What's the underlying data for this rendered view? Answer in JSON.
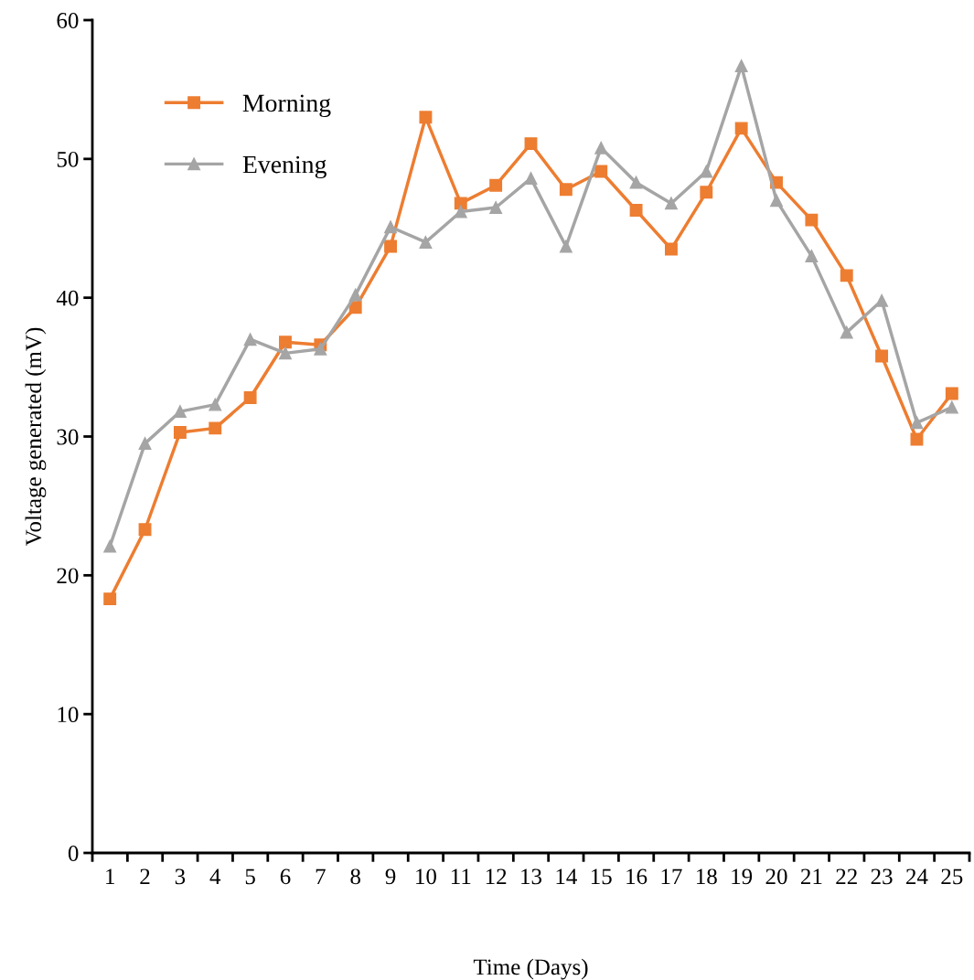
{
  "chart_data": {
    "type": "line",
    "xlabel": "Time (Days)",
    "ylabel": "Voltage generated (mV)",
    "categories": [
      "1",
      "2",
      "3",
      "4",
      "5",
      "6",
      "7",
      "8",
      "9",
      "10",
      "11",
      "12",
      "13",
      "14",
      "15",
      "16",
      "17",
      "18",
      "19",
      "20",
      "21",
      "22",
      "23",
      "24",
      "25"
    ],
    "series": [
      {
        "name": "Morning",
        "color": "#ed7d31",
        "marker": "square",
        "values": [
          18.3,
          23.3,
          30.3,
          30.6,
          32.8,
          36.8,
          36.6,
          39.3,
          43.7,
          53.0,
          46.8,
          48.1,
          51.1,
          47.8,
          49.1,
          46.3,
          43.5,
          47.6,
          52.2,
          48.3,
          45.6,
          41.6,
          35.8,
          29.8,
          33.1
        ]
      },
      {
        "name": "Evening",
        "color": "#a5a5a5",
        "marker": "triangle",
        "values": [
          22.1,
          29.5,
          31.8,
          32.3,
          37.0,
          36.0,
          36.3,
          40.2,
          45.1,
          44.0,
          46.2,
          46.5,
          48.6,
          43.7,
          50.8,
          48.3,
          46.8,
          49.1,
          56.7,
          47.0,
          43.0,
          37.5,
          39.8,
          31.0,
          32.1
        ]
      }
    ],
    "ylim": [
      0,
      60
    ],
    "yticks": [
      0,
      10,
      20,
      30,
      40,
      50,
      60
    ],
    "grid": false,
    "legend": "top left",
    "line_style": "solid"
  }
}
